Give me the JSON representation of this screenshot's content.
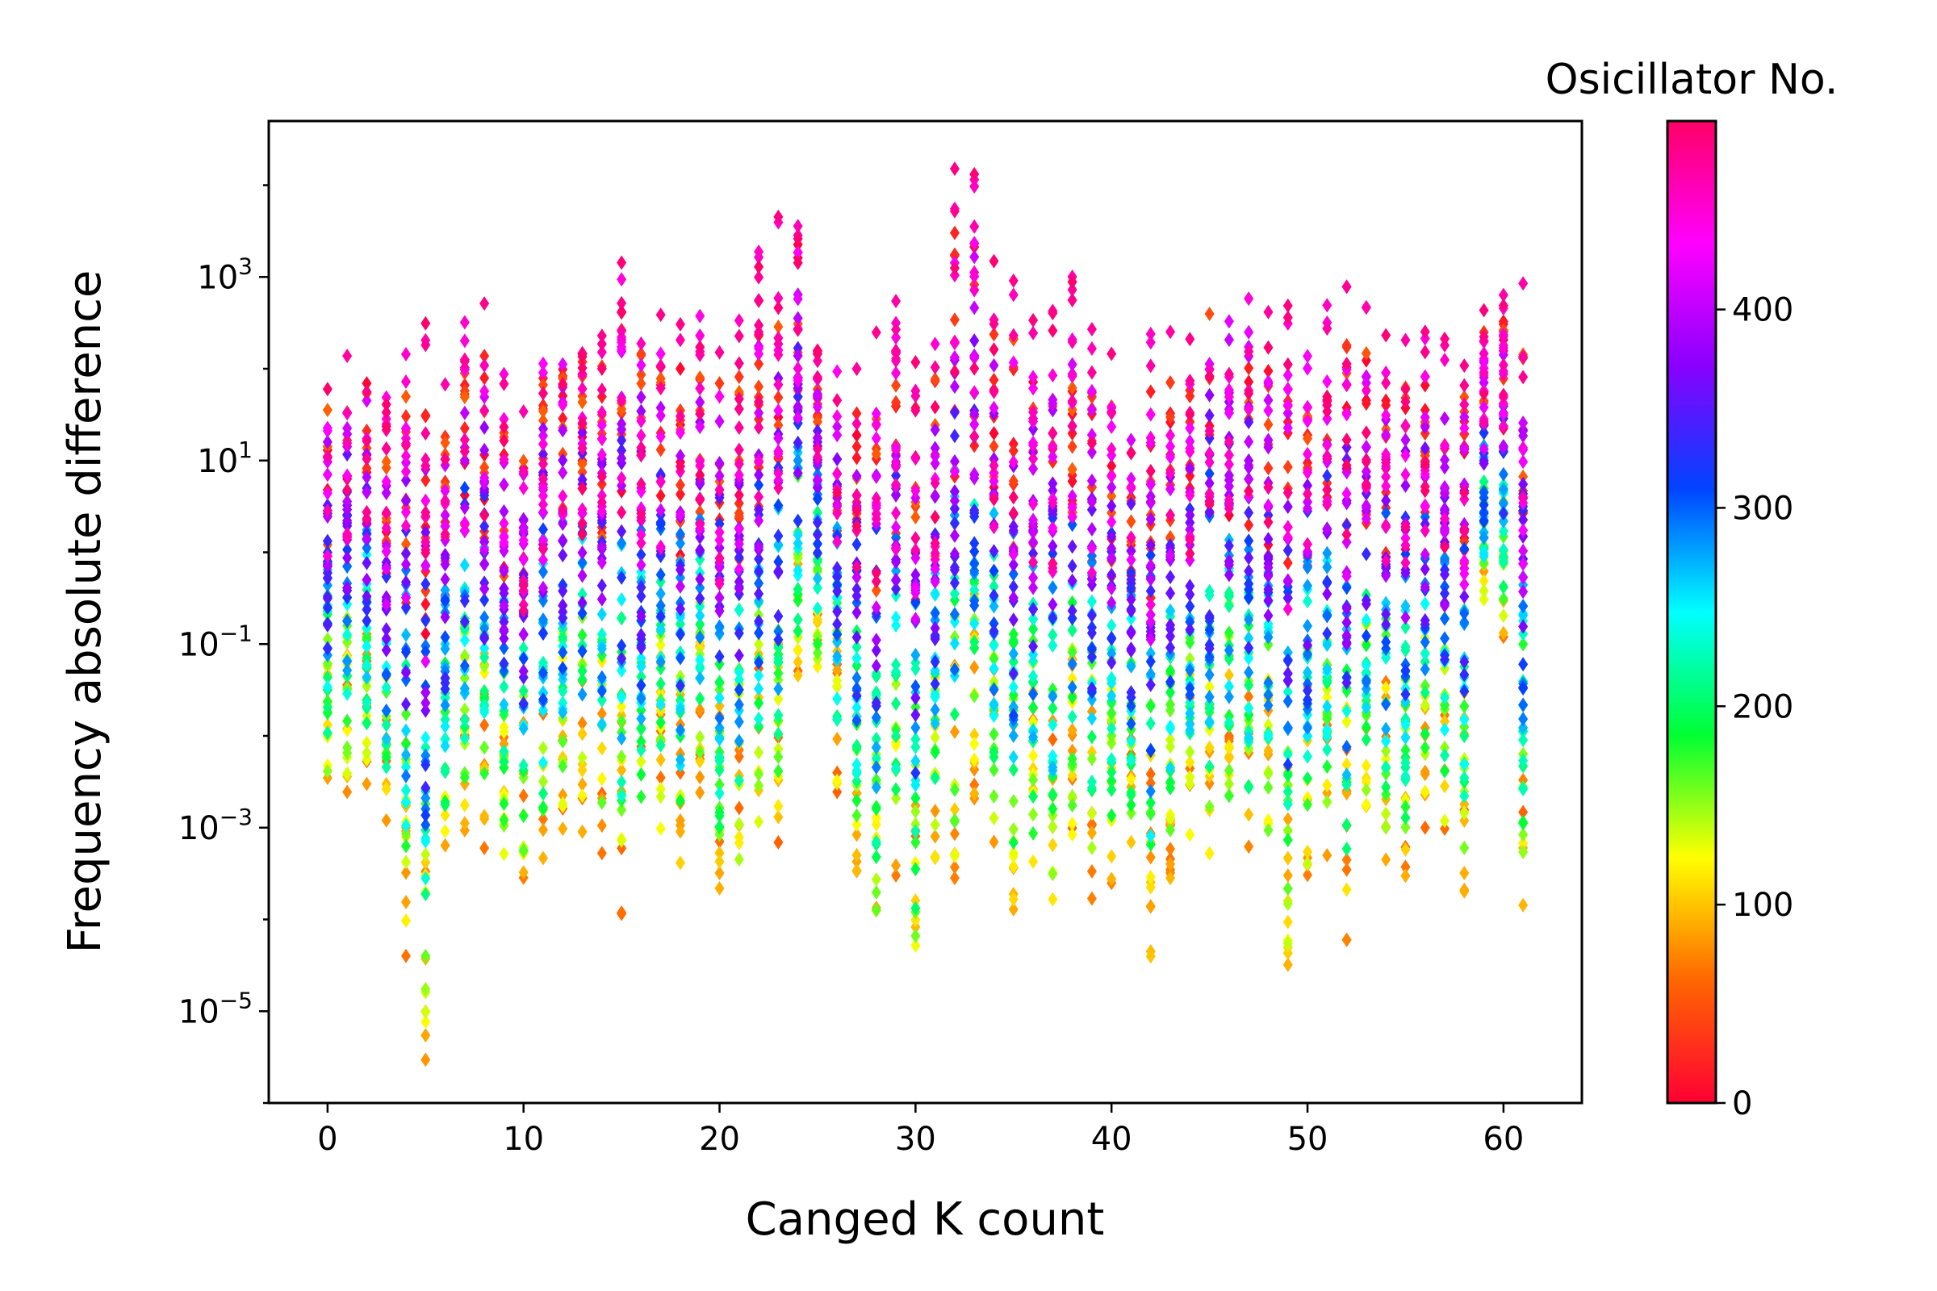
{
  "chart_data": {
    "type": "scatter",
    "title": "",
    "xlabel": "Canged K count",
    "ylabel": "Frequency absolute difference",
    "x_range": [
      -3,
      64
    ],
    "y_scale": "log",
    "y_range": [
      1e-06,
      50000
    ],
    "x_ticks": [
      {
        "value": 0,
        "label": "0"
      },
      {
        "value": 10,
        "label": "10"
      },
      {
        "value": 20,
        "label": "20"
      },
      {
        "value": 30,
        "label": "30"
      },
      {
        "value": 40,
        "label": "40"
      },
      {
        "value": 50,
        "label": "50"
      },
      {
        "value": 60,
        "label": "60"
      }
    ],
    "y_ticks": [
      {
        "value": 1000.0,
        "base": "10",
        "exp": "3"
      },
      {
        "value": 10.0,
        "base": "10",
        "exp": "1"
      },
      {
        "value": 0.1,
        "base": "10",
        "exp": "−1"
      },
      {
        "value": 0.001,
        "base": "10",
        "exp": "−3"
      },
      {
        "value": 1e-05,
        "base": "10",
        "exp": "−5"
      }
    ],
    "marker": "diamond",
    "colormap": "gist_rainbow (reversed: 0 red → high magenta-red)",
    "colorbar": {
      "title": "Osicillator No.",
      "range": [
        0,
        495
      ],
      "ticks": [
        {
          "value": 0,
          "label": "0"
        },
        {
          "value": 100,
          "label": "100"
        },
        {
          "value": 200,
          "label": "200"
        },
        {
          "value": 300,
          "label": "300"
        },
        {
          "value": 400,
          "label": "400"
        }
      ],
      "stops": [
        "#ff0033",
        "#ff6600",
        "#ffff00",
        "#00ff33",
        "#00ffff",
        "#0044ff",
        "#8800ff",
        "#ff00ff",
        "#ff0066"
      ]
    },
    "series_summary": {
      "x_values": "integers 0 to 61",
      "oscillators_per_x": 495,
      "typical_max_per_x": [
        120,
        250,
        230,
        60,
        350,
        400,
        80,
        550,
        600,
        90,
        50,
        600,
        600,
        600,
        550,
        2000,
        800,
        500,
        500,
        500,
        300,
        350,
        2000,
        6000,
        8000,
        300,
        250,
        150,
        600,
        800,
        300,
        400,
        20000,
        20000,
        1500,
        1200,
        600,
        700,
        1200,
        300,
        300,
        100,
        300,
        300,
        250,
        2000,
        2600,
        1600,
        550,
        550,
        550,
        550,
        950,
        650,
        400,
        400,
        350,
        300,
        250,
        600,
        850,
        1000
      ],
      "typical_min_per_x": [
        0.002,
        0.002,
        0.003,
        0.0007,
        4e-05,
        2.7e-06,
        0.0004,
        0.0009,
        0.0006,
        0.0003,
        0.0002,
        0.0003,
        0.0007,
        0.0009,
        0.0004,
        0.0001,
        0.0003,
        0.0006,
        0.00015,
        0.002,
        0.00015,
        0.0002,
        0.0006,
        0.0004,
        0.03,
        0.04,
        0.002,
        0.0003,
        3e-05,
        0.0003,
        1.6e-05,
        0.0003,
        0.00025,
        0.002,
        0.0005,
        0.0001,
        0.0002,
        0.0001,
        0.0005,
        0.00015,
        0.0002,
        0.0003,
        3e-05,
        0.0002,
        0.0005,
        0.0003,
        0.0005,
        0.0003,
        0.0002,
        1.8e-05,
        0.0002,
        0.0005,
        6e-05,
        0.001,
        0.0004,
        0.0002,
        0.001,
        0.0005,
        0.0002,
        0.15,
        0.12,
        0.00013
      ]
    }
  }
}
